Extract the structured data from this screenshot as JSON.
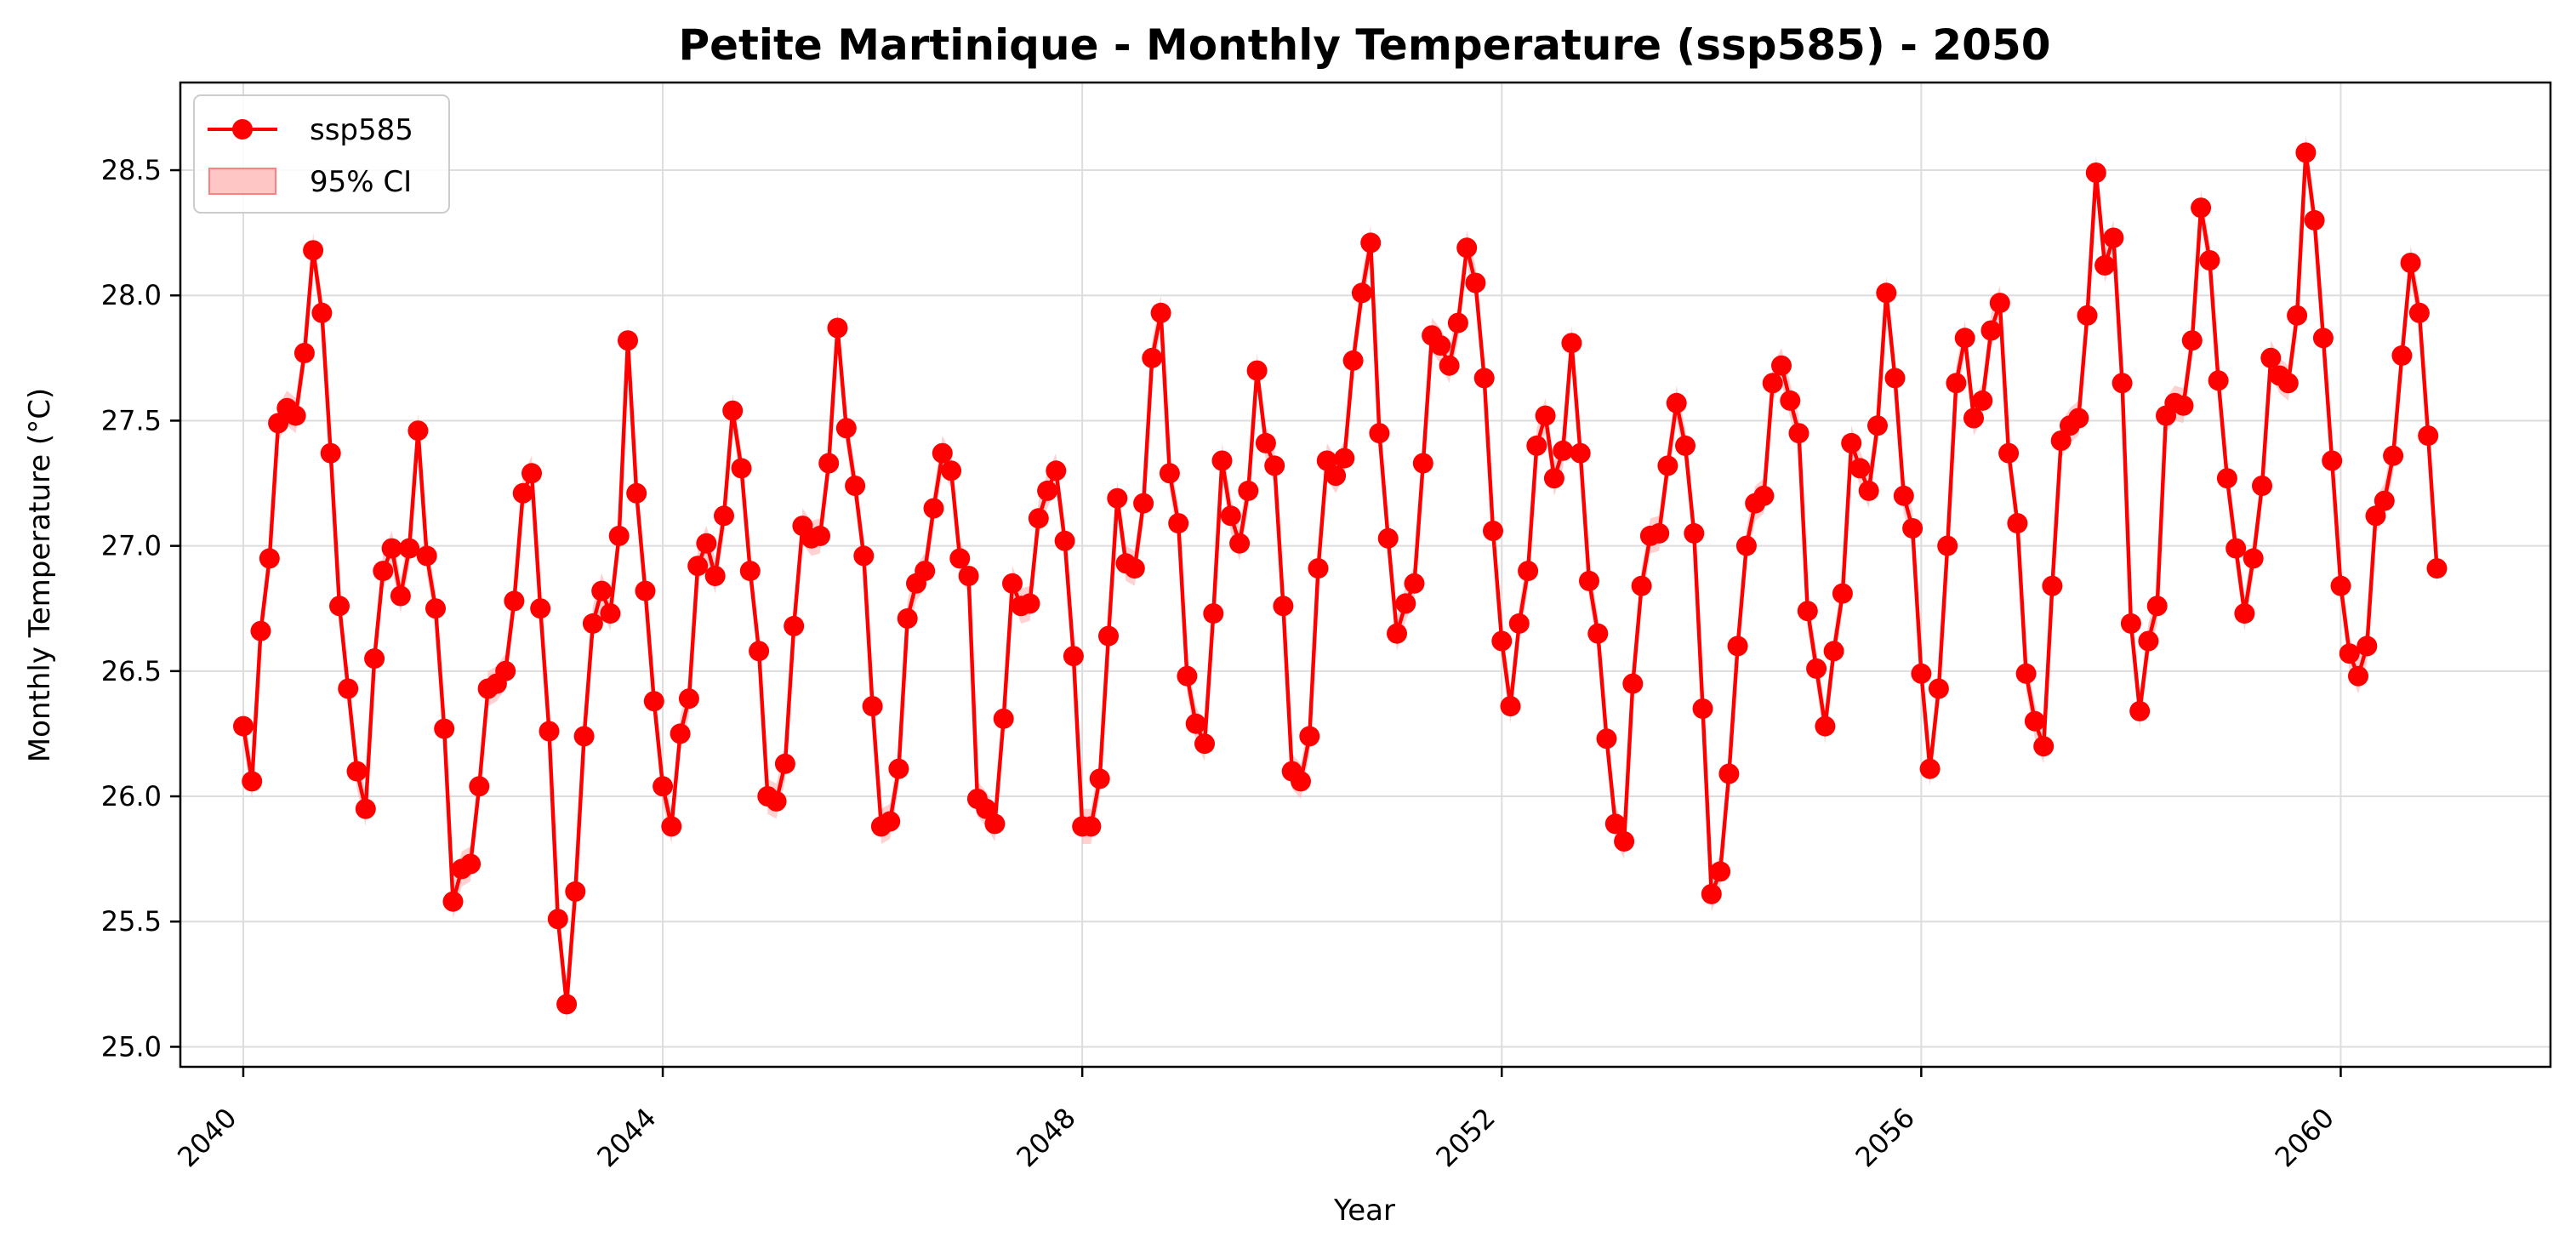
{
  "chart_data": {
    "type": "line",
    "title": "Petite Martinique - Monthly Temperature (ssp585) - 2050",
    "xlabel": "Year",
    "ylabel": "Monthly Temperature (°C)",
    "x_start": "2040-01",
    "x_interval": "monthly",
    "xlim": [
      2039.4,
      2062.0
    ],
    "ylim": [
      24.92,
      28.85
    ],
    "xticks": [
      2040,
      2044,
      2048,
      2052,
      2056,
      2060
    ],
    "xtick_labels": [
      "2040",
      "2044",
      "2048",
      "2052",
      "2056",
      "2060"
    ],
    "yticks": [
      25.0,
      25.5,
      26.0,
      26.5,
      27.0,
      27.5,
      28.0,
      28.5
    ],
    "ytick_labels": [
      "25.0",
      "25.5",
      "26.0",
      "26.5",
      "27.0",
      "27.5",
      "28.0",
      "28.5"
    ],
    "grid": true,
    "legend_position": "top-left",
    "colors": {
      "line": "#ff0000",
      "ci": "#ffb3b3",
      "axis": "#000000",
      "grid": "#dddddd"
    },
    "series": [
      {
        "name": "ssp585",
        "ci_name": "95% CI",
        "ci_halfwidth": 0.07,
        "values": [
          26.28,
          26.06,
          26.66,
          26.95,
          27.49,
          27.55,
          27.52,
          27.77,
          28.18,
          27.93,
          27.37,
          26.76,
          26.43,
          26.1,
          25.95,
          26.55,
          26.9,
          26.99,
          26.8,
          26.99,
          27.46,
          26.96,
          26.75,
          26.27,
          25.58,
          25.71,
          25.73,
          26.04,
          26.43,
          26.45,
          26.5,
          26.78,
          27.21,
          27.29,
          26.75,
          26.26,
          25.51,
          25.17,
          25.62,
          26.24,
          26.69,
          26.82,
          26.73,
          27.04,
          27.82,
          27.21,
          26.82,
          26.38,
          26.04,
          25.88,
          26.25,
          26.39,
          26.92,
          27.01,
          26.88,
          27.12,
          27.54,
          27.31,
          26.9,
          26.58,
          26.0,
          25.98,
          26.13,
          26.68,
          27.08,
          27.03,
          27.04,
          27.33,
          27.87,
          27.47,
          27.24,
          26.96,
          26.36,
          25.88,
          25.9,
          26.11,
          26.71,
          26.85,
          26.9,
          27.15,
          27.37,
          27.3,
          26.95,
          26.88,
          25.99,
          25.95,
          25.89,
          26.31,
          26.85,
          26.76,
          26.77,
          27.11,
          27.22,
          27.3,
          27.02,
          26.56,
          25.88,
          25.88,
          26.07,
          26.64,
          27.19,
          26.93,
          26.91,
          27.17,
          27.75,
          27.93,
          27.29,
          27.09,
          26.48,
          26.29,
          26.21,
          26.73,
          27.34,
          27.12,
          27.01,
          27.22,
          27.7,
          27.41,
          27.32,
          26.76,
          26.1,
          26.06,
          26.24,
          26.91,
          27.34,
          27.28,
          27.35,
          27.74,
          28.01,
          28.21,
          27.45,
          27.03,
          26.65,
          26.77,
          26.85,
          27.33,
          27.84,
          27.8,
          27.72,
          27.89,
          28.19,
          28.05,
          27.67,
          27.06,
          26.62,
          26.36,
          26.69,
          26.9,
          27.4,
          27.52,
          27.27,
          27.38,
          27.81,
          27.37,
          26.86,
          26.65,
          26.23,
          25.89,
          25.82,
          26.45,
          26.84,
          27.04,
          27.05,
          27.32,
          27.57,
          27.4,
          27.05,
          26.35,
          25.61,
          25.7,
          26.09,
          26.6,
          27.0,
          27.17,
          27.2,
          27.65,
          27.72,
          27.58,
          27.45,
          26.74,
          26.51,
          26.28,
          26.58,
          26.81,
          27.41,
          27.31,
          27.22,
          27.48,
          28.01,
          27.67,
          27.2,
          27.07,
          26.49,
          26.11,
          26.43,
          27.0,
          27.65,
          27.83,
          27.51,
          27.58,
          27.86,
          27.97,
          27.37,
          27.09,
          26.49,
          26.3,
          26.2,
          26.84,
          27.42,
          27.48,
          27.51,
          27.92,
          28.49,
          28.12,
          28.23,
          27.65,
          26.69,
          26.34,
          26.62,
          26.76,
          27.52,
          27.57,
          27.56,
          27.82,
          28.35,
          28.14,
          27.66,
          27.27,
          26.99,
          26.73,
          26.95,
          27.24,
          27.75,
          27.68,
          27.65,
          27.92,
          28.57,
          28.3,
          27.83,
          27.34,
          26.84,
          26.57,
          26.48,
          26.6,
          27.12,
          27.18,
          27.36,
          27.76,
          28.13,
          27.93,
          27.44,
          26.91
        ]
      }
    ]
  }
}
